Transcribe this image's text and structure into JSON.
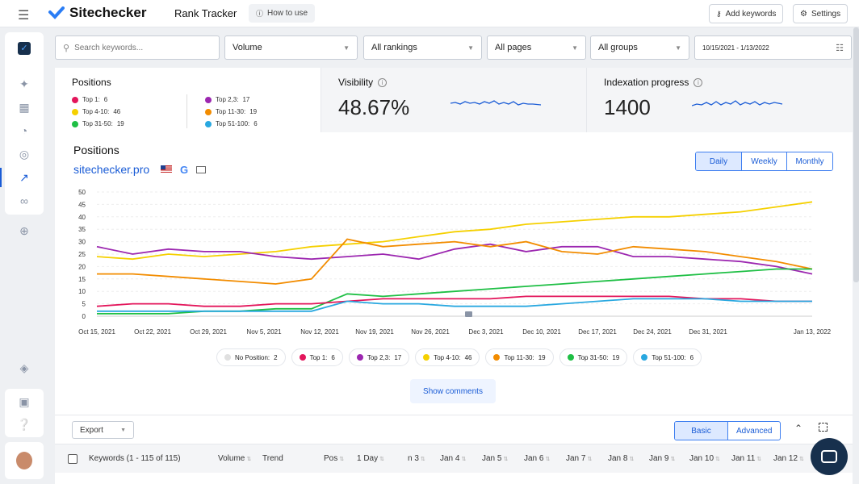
{
  "header": {
    "brand": "Sitechecker",
    "app_title": "Rank Tracker",
    "how_to_use": "How to use",
    "add_keywords": "Add keywords",
    "settings": "Settings"
  },
  "filters": {
    "search_placeholder": "Search keywords...",
    "volume": "Volume",
    "rankings": "All rankings",
    "pages": "All pages",
    "groups": "All groups",
    "date_range": "10/15/2021 - 1/13/2022"
  },
  "positions_card": {
    "title": "Positions",
    "items": [
      {
        "label": "Top 1:",
        "value": "6",
        "color": "#e3165b"
      },
      {
        "label": "Top 4-10:",
        "value": "46",
        "color": "#f5d000"
      },
      {
        "label": "Top 31-50:",
        "value": "19",
        "color": "#1fbf45"
      },
      {
        "label": "Top 2,3:",
        "value": "17",
        "color": "#9c27b0"
      },
      {
        "label": "Top 11-30:",
        "value": "19",
        "color": "#f28c00"
      },
      {
        "label": "Top 51-100:",
        "value": "6",
        "color": "#29a8e0"
      }
    ]
  },
  "visibility": {
    "title": "Visibility",
    "value": "48.67%"
  },
  "indexation": {
    "title": "Indexation progress",
    "value": "1400"
  },
  "chart": {
    "heading": "Positions",
    "domain": "sitechecker.pro",
    "periods": [
      "Daily",
      "Weekly",
      "Monthly"
    ],
    "active_period": "Daily"
  },
  "chart_data": {
    "type": "line",
    "y_ticks": [
      "0",
      "5",
      "10",
      "15",
      "20",
      "25",
      "30",
      "35",
      "40",
      "45",
      "50"
    ],
    "ylim": [
      0,
      50
    ],
    "x_ticks": [
      "Oct 15, 2021",
      "Oct 22, 2021",
      "Oct 29, 2021",
      "Nov 5, 2021",
      "Nov 12, 2021",
      "Nov 19, 2021",
      "Nov 26, 2021",
      "Dec 3, 2021",
      "Dec 10, 2021",
      "Dec 17, 2021",
      "Dec 24, 2021",
      "Dec 31, 2021",
      "Jan 13, 2022"
    ],
    "series": [
      {
        "name": "Top 4-10",
        "color": "#f5d000",
        "values": [
          24,
          23,
          25,
          24,
          25,
          26,
          28,
          29,
          30,
          32,
          34,
          35,
          37,
          38,
          39,
          40,
          40,
          41,
          42,
          44,
          46
        ]
      },
      {
        "name": "Top 2,3",
        "color": "#9c27b0",
        "values": [
          28,
          25,
          27,
          26,
          26,
          24,
          23,
          24,
          25,
          23,
          27,
          29,
          26,
          28,
          28,
          24,
          24,
          23,
          22,
          20,
          17
        ]
      },
      {
        "name": "Top 11-30",
        "color": "#f28c00",
        "values": [
          17,
          17,
          16,
          15,
          14,
          13,
          15,
          31,
          28,
          29,
          30,
          28,
          30,
          26,
          25,
          28,
          27,
          26,
          24,
          22,
          19
        ]
      },
      {
        "name": "Top 31-50",
        "color": "#1fbf45",
        "values": [
          1,
          1,
          1,
          2,
          2,
          3,
          3,
          9,
          8,
          9,
          10,
          11,
          12,
          13,
          14,
          15,
          16,
          17,
          18,
          19,
          19
        ]
      },
      {
        "name": "Top 1",
        "color": "#e3165b",
        "values": [
          4,
          5,
          5,
          4,
          4,
          5,
          5,
          6,
          7,
          7,
          7,
          7,
          8,
          8,
          8,
          8,
          8,
          7,
          7,
          6,
          6
        ]
      },
      {
        "name": "Top 51-100",
        "color": "#29a8e0",
        "values": [
          2,
          2,
          2,
          2,
          2,
          2,
          2,
          6,
          5,
          5,
          4,
          4,
          4,
          5,
          6,
          7,
          7,
          7,
          6,
          6,
          6
        ]
      }
    ]
  },
  "legend": [
    {
      "label": "No Position:",
      "value": "2",
      "color": "#e0e0e0"
    },
    {
      "label": "Top 1:",
      "value": "6",
      "color": "#e3165b"
    },
    {
      "label": "Top 2,3:",
      "value": "17",
      "color": "#9c27b0"
    },
    {
      "label": "Top 4-10:",
      "value": "46",
      "color": "#f5d000"
    },
    {
      "label": "Top 11-30:",
      "value": "19",
      "color": "#f28c00"
    },
    {
      "label": "Top 31-50:",
      "value": "19",
      "color": "#1fbf45"
    },
    {
      "label": "Top 51-100:",
      "value": "6",
      "color": "#29a8e0"
    }
  ],
  "show_comments": "Show comments",
  "table": {
    "export": "Export",
    "views": [
      "Basic",
      "Advanced"
    ],
    "active_view": "Basic",
    "columns": [
      "Keywords (1 - 115 of 115)",
      "Volume",
      "Trend",
      "Pos",
      "1 Day",
      "n 3",
      "Jan 4",
      "Jan 5",
      "Jan 6",
      "Jan 7",
      "Jan 8",
      "Jan 9",
      "Jan 10",
      "Jan 11",
      "Jan 12"
    ]
  }
}
